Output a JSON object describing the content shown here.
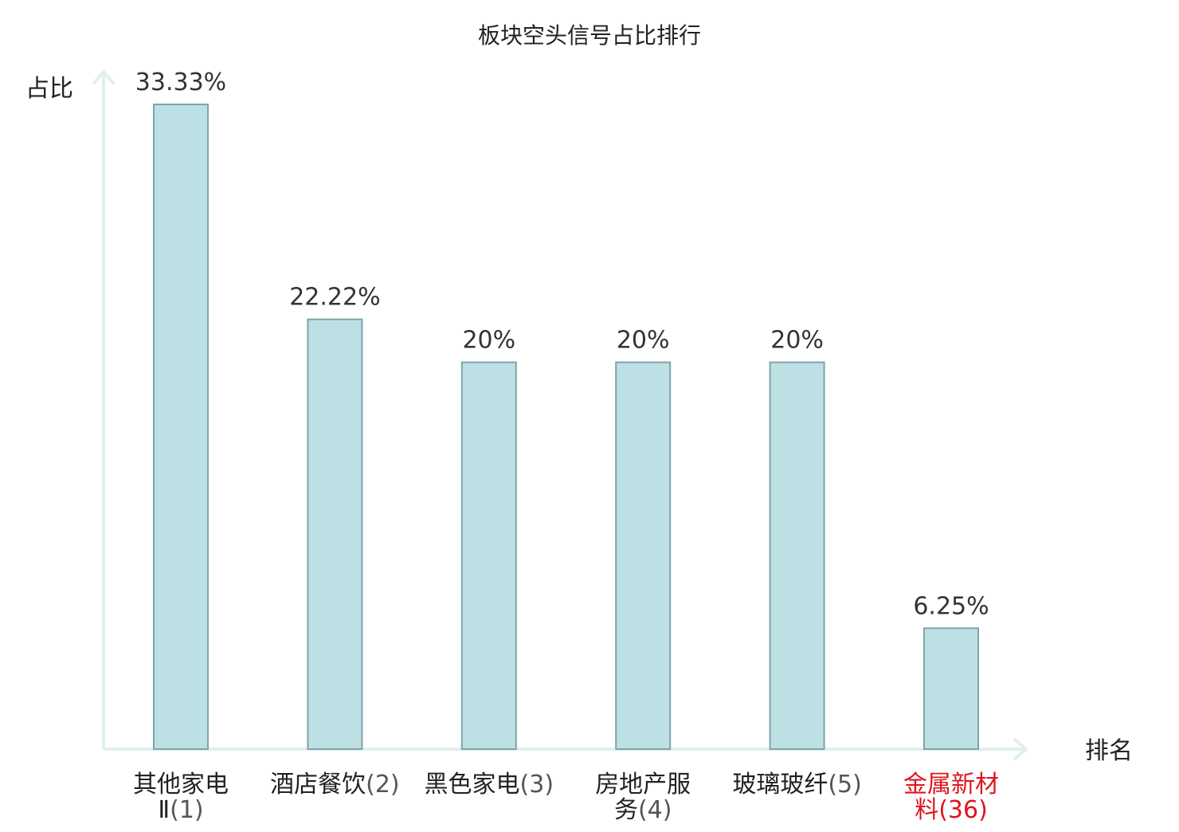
{
  "chart_data": {
    "type": "bar",
    "title": "板块空头信号占比排行",
    "xlabel": "排名",
    "ylabel": "占比",
    "categories": [
      {
        "name": [
          "其他家电",
          "Ⅱ"
        ],
        "rank": "(1)",
        "highlight": false
      },
      {
        "name": [
          "酒店餐饮"
        ],
        "rank": "(2)",
        "highlight": false
      },
      {
        "name": [
          "黑色家电"
        ],
        "rank": "(3)",
        "highlight": false
      },
      {
        "name": [
          "房地产服",
          "务"
        ],
        "rank": "(4)",
        "highlight": false
      },
      {
        "name": [
          "玻璃玻纤"
        ],
        "rank": "(5)",
        "highlight": false
      },
      {
        "name": [
          "金属新材",
          "料"
        ],
        "rank": "(36)",
        "highlight": true
      }
    ],
    "values": [
      33.33,
      22.22,
      20,
      20,
      20,
      6.25
    ],
    "value_labels": [
      "33.33%",
      "22.22%",
      "20%",
      "20%",
      "20%",
      "6.25%"
    ],
    "ylim": [
      0,
      33.33
    ],
    "grid": false,
    "legend": "none"
  },
  "colors": {
    "bar_fill": "#bce0e3",
    "bar_stroke": "#7fa5a8",
    "axis": "#dff0ee",
    "text": "#222222",
    "value_text": "#333333",
    "highlight": "#e0141e"
  }
}
